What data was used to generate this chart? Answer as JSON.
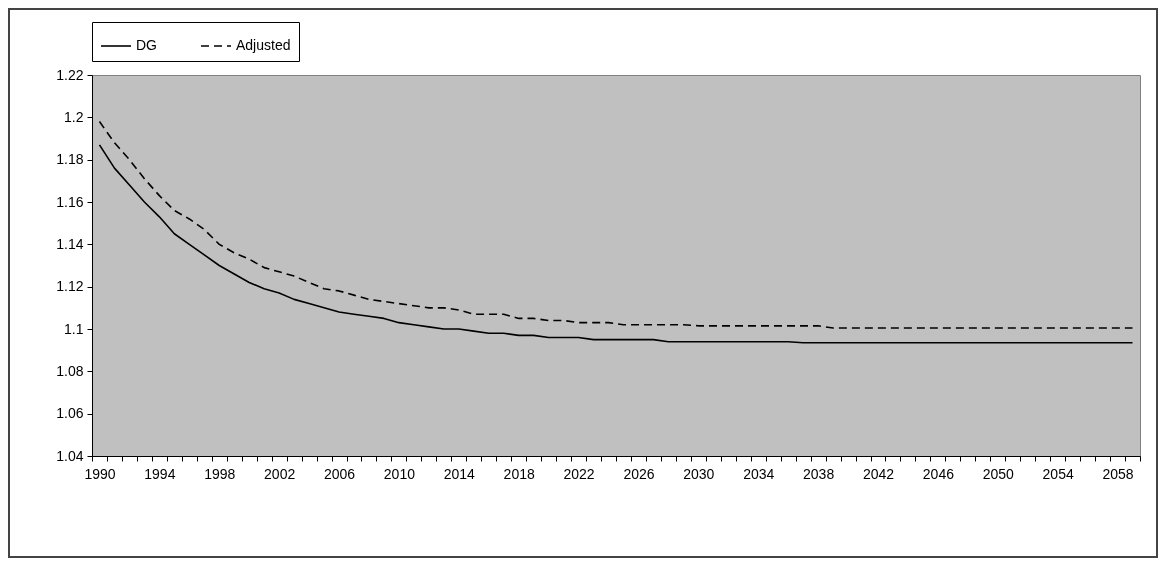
{
  "chart_data": {
    "type": "line",
    "categories": [
      "1990",
      null,
      null,
      null,
      "1994",
      null,
      null,
      null,
      "1998",
      null,
      null,
      null,
      "2002",
      null,
      null,
      null,
      "2006",
      null,
      null,
      null,
      "2010",
      null,
      null,
      null,
      "2014",
      null,
      null,
      null,
      "2018",
      null,
      null,
      null,
      "2022",
      null,
      null,
      null,
      "2026",
      null,
      null,
      null,
      "2030",
      null,
      null,
      null,
      "2034",
      null,
      null,
      null,
      "2038",
      null,
      null,
      null,
      "2042",
      null,
      null,
      null,
      "2046",
      null,
      null,
      null,
      "2050",
      null,
      null,
      null,
      "2054",
      null,
      null,
      null,
      "2058",
      null
    ],
    "series": [
      {
        "name": "DG",
        "color": "#000000",
        "line_style": "solid",
        "values": [
          1.187,
          1.176,
          1.168,
          1.16,
          1.153,
          1.145,
          1.14,
          1.135,
          1.13,
          1.126,
          1.122,
          1.119,
          1.117,
          1.114,
          1.112,
          1.11,
          1.108,
          1.107,
          1.106,
          1.105,
          1.103,
          1.102,
          1.101,
          1.1,
          1.1,
          1.099,
          1.098,
          1.098,
          1.097,
          1.097,
          1.096,
          1.096,
          1.096,
          1.095,
          1.095,
          1.095,
          1.095,
          1.095,
          1.094,
          1.094,
          1.094,
          1.094,
          1.094,
          1.094,
          1.094,
          1.094,
          1.094,
          1.0935,
          1.0935,
          1.0935,
          1.0935,
          1.0935,
          1.0935,
          1.0935,
          1.0935,
          1.0935,
          1.0935,
          1.0935,
          1.0935,
          1.0935,
          1.0935,
          1.0935,
          1.0935,
          1.0935,
          1.0935,
          1.0935,
          1.0935,
          1.0935,
          1.0935,
          1.0935
        ]
      },
      {
        "name": "Adjusted",
        "color": "#000000",
        "line_style": "dashed",
        "values": [
          1.198,
          1.188,
          1.18,
          1.171,
          1.163,
          1.156,
          1.152,
          1.147,
          1.14,
          1.136,
          1.133,
          1.129,
          1.127,
          1.125,
          1.122,
          1.119,
          1.118,
          1.116,
          1.114,
          1.113,
          1.112,
          1.111,
          1.11,
          1.11,
          1.109,
          1.107,
          1.107,
          1.107,
          1.105,
          1.105,
          1.104,
          1.104,
          1.103,
          1.103,
          1.103,
          1.102,
          1.102,
          1.102,
          1.102,
          1.102,
          1.1015,
          1.1015,
          1.1015,
          1.1015,
          1.1015,
          1.1015,
          1.1015,
          1.1015,
          1.1015,
          1.1005,
          1.1005,
          1.1005,
          1.1005,
          1.1005,
          1.1005,
          1.1005,
          1.1005,
          1.1005,
          1.1005,
          1.1005,
          1.1005,
          1.1005,
          1.1005,
          1.1005,
          1.1005,
          1.1005,
          1.1005,
          1.1005,
          1.1005,
          1.1005
        ]
      }
    ],
    "ylim": [
      1.04,
      1.22
    ],
    "yticks": [
      1.04,
      1.06,
      1.08,
      1.1,
      1.12,
      1.14,
      1.16,
      1.18,
      1.2,
      1.22
    ],
    "grid": false,
    "legend": "top"
  }
}
